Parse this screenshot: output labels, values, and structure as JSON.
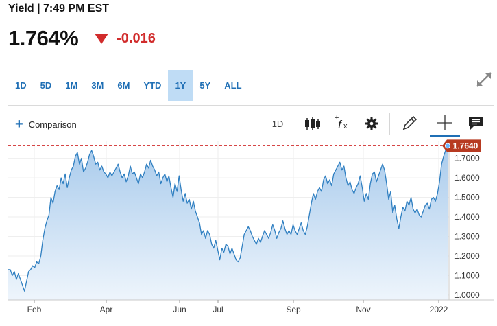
{
  "header": {
    "title": "Yield | 7:49 PM EST"
  },
  "quote": {
    "price": "1.764%",
    "change": "-0.016"
  },
  "ranges": [
    "1D",
    "5D",
    "1M",
    "3M",
    "6M",
    "YTD",
    "1Y",
    "5Y",
    "ALL"
  ],
  "active_range": "1Y",
  "toolbar": {
    "comparison_label": "Comparison",
    "interval_label": "1D"
  },
  "icons": [
    "expand-icon",
    "plus-icon",
    "candlestick-icon",
    "function-icon",
    "gear-icon",
    "pencil-icon",
    "crosshair-icon",
    "comment-icon"
  ],
  "colors": {
    "accent": "#1f6fb5",
    "down": "#d12c2c",
    "line": "#2f7fc1",
    "fill_top": "#a9cbec",
    "fill_bottom": "#eef5fc",
    "active_tab": "#bfdcf5"
  },
  "chart_data": {
    "type": "area",
    "title": "",
    "xlabel": "",
    "ylabel": "",
    "x_ticks": [
      "Feb",
      "Apr",
      "Jun",
      "Jul",
      "Sep",
      "Nov",
      "2022"
    ],
    "y_ticks": [
      "1.0000",
      "1.1000",
      "1.2000",
      "1.3000",
      "1.4000",
      "1.5000",
      "1.6000",
      "1.7000"
    ],
    "ylim": [
      0.975,
      1.79
    ],
    "grid": true,
    "last_value_label": "1.7640",
    "series": [
      {
        "values": [
          1.13,
          1.13,
          1.1,
          1.12,
          1.08,
          1.11,
          1.08,
          1.05,
          1.02,
          1.07,
          1.12,
          1.13,
          1.15,
          1.14,
          1.17,
          1.16,
          1.2,
          1.28,
          1.34,
          1.38,
          1.41,
          1.5,
          1.47,
          1.53,
          1.56,
          1.54,
          1.6,
          1.57,
          1.62,
          1.55,
          1.6,
          1.64,
          1.66,
          1.71,
          1.73,
          1.67,
          1.7,
          1.63,
          1.65,
          1.68,
          1.72,
          1.74,
          1.71,
          1.67,
          1.68,
          1.64,
          1.66,
          1.63,
          1.62,
          1.6,
          1.63,
          1.61,
          1.63,
          1.65,
          1.67,
          1.63,
          1.6,
          1.62,
          1.58,
          1.61,
          1.66,
          1.62,
          1.63,
          1.6,
          1.57,
          1.62,
          1.6,
          1.63,
          1.67,
          1.65,
          1.69,
          1.66,
          1.64,
          1.61,
          1.63,
          1.57,
          1.6,
          1.62,
          1.58,
          1.61,
          1.55,
          1.5,
          1.57,
          1.53,
          1.61,
          1.54,
          1.48,
          1.52,
          1.47,
          1.49,
          1.44,
          1.48,
          1.43,
          1.4,
          1.37,
          1.31,
          1.33,
          1.29,
          1.33,
          1.31,
          1.26,
          1.24,
          1.28,
          1.23,
          1.18,
          1.24,
          1.22,
          1.26,
          1.25,
          1.21,
          1.24,
          1.21,
          1.18,
          1.17,
          1.19,
          1.25,
          1.31,
          1.33,
          1.35,
          1.33,
          1.3,
          1.28,
          1.26,
          1.29,
          1.27,
          1.3,
          1.33,
          1.31,
          1.29,
          1.32,
          1.36,
          1.33,
          1.29,
          1.32,
          1.34,
          1.38,
          1.34,
          1.31,
          1.33,
          1.31,
          1.36,
          1.33,
          1.31,
          1.34,
          1.37,
          1.33,
          1.31,
          1.35,
          1.41,
          1.47,
          1.52,
          1.49,
          1.53,
          1.55,
          1.53,
          1.59,
          1.61,
          1.57,
          1.59,
          1.56,
          1.62,
          1.64,
          1.66,
          1.68,
          1.64,
          1.66,
          1.6,
          1.56,
          1.58,
          1.54,
          1.52,
          1.55,
          1.57,
          1.61,
          1.55,
          1.48,
          1.52,
          1.49,
          1.57,
          1.62,
          1.63,
          1.58,
          1.61,
          1.64,
          1.67,
          1.64,
          1.57,
          1.49,
          1.53,
          1.42,
          1.46,
          1.39,
          1.34,
          1.4,
          1.45,
          1.43,
          1.48,
          1.46,
          1.5,
          1.44,
          1.42,
          1.44,
          1.41,
          1.4,
          1.43,
          1.46,
          1.47,
          1.44,
          1.49,
          1.5,
          1.48,
          1.52,
          1.58,
          1.67,
          1.71,
          1.74,
          1.764
        ]
      }
    ]
  }
}
